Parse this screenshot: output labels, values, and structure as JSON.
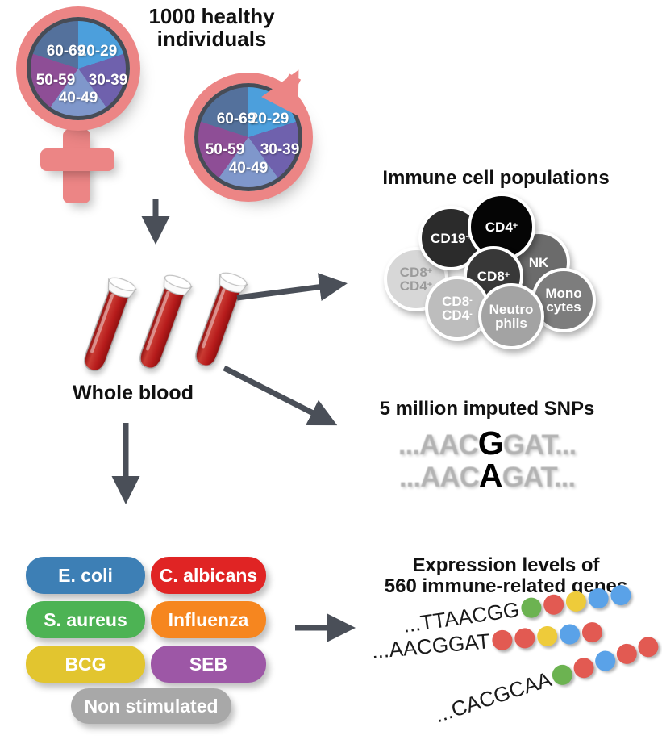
{
  "title": {
    "line1": "1000 healthy",
    "line2": "individuals"
  },
  "age_groups": [
    "20-29",
    "30-39",
    "40-49",
    "50-59",
    "60-69"
  ],
  "whole_blood_label": "Whole blood",
  "immune": {
    "title": "Immune cell populations",
    "cells": [
      {
        "line1": "CD8",
        "sup1": "+",
        "line2": "CD4",
        "sup2": "+",
        "bg": "#d7d7d7",
        "fg": "#9b9b9b"
      },
      {
        "line1": "CD19",
        "sup1": "+",
        "bg": "#2b2b2b",
        "fg": "#ffffff"
      },
      {
        "line1": "NK",
        "bg": "#6b6b6b",
        "fg": "#ffffff"
      },
      {
        "line1": "CD4",
        "sup1": "+",
        "bg": "#050505",
        "fg": "#ffffff"
      },
      {
        "line1": "CD8",
        "sup1": "+",
        "bg": "#383838",
        "fg": "#ffffff"
      },
      {
        "line1": "CD8",
        "sup1": "-",
        "line2": "CD4",
        "sup2": "-",
        "bg": "#bdbdbd",
        "fg": "#ffffff"
      },
      {
        "line1": "Mono",
        "line2": "cytes",
        "bg": "#7d7d7d",
        "fg": "#ffffff"
      },
      {
        "line1": "Neutro",
        "line2": "phils",
        "bg": "#a3a3a3",
        "fg": "#ffffff"
      }
    ]
  },
  "snps": {
    "title": "5 million imputed SNPs",
    "rows": [
      {
        "pre": "...AAC",
        "snp": "G",
        "post": "GAT..."
      },
      {
        "pre": "...AAC",
        "snp": "A",
        "post": "GAT..."
      }
    ]
  },
  "stimuli": [
    {
      "label": "E. coli",
      "color": "#3d7fb5"
    },
    {
      "label": "C. albicans",
      "color": "#e02424"
    },
    {
      "label": "S. aureus",
      "color": "#4db354"
    },
    {
      "label": "Influenza",
      "color": "#f6861f"
    },
    {
      "label": "BCG",
      "color": "#e2c52f"
    },
    {
      "label": "SEB",
      "color": "#9d57a6"
    },
    {
      "label": "Non stimulated",
      "color": "#a8a8a8"
    }
  ],
  "expression": {
    "title_line1": "Expression levels of",
    "title_line2": "560 immune-related genes",
    "rows": [
      {
        "text": "...TTAACGG",
        "dots": [
          "green",
          "red",
          "yellow",
          "blue",
          "blue"
        ]
      },
      {
        "text": "...AACGGAT",
        "dots": [
          "red",
          "red",
          "yellow",
          "blue",
          "red"
        ]
      },
      {
        "text": "...CACGCAA",
        "dots": [
          "green",
          "red",
          "blue",
          "red",
          "red"
        ]
      }
    ]
  },
  "colors": {
    "salmon": "#ec8585",
    "arrow": "#4a4f58",
    "pie": {
      "20-29": "#4c9fdc",
      "30-39": "#6f61ad",
      "40-49": "#7f97cb",
      "50-59": "#8e4e96",
      "60-69": "#54719c"
    },
    "dot": {
      "green": "#6cb351",
      "red": "#e25a52",
      "yellow": "#eecb3a",
      "blue": "#5aa2e8"
    },
    "tube_red": "#b71c1c"
  }
}
